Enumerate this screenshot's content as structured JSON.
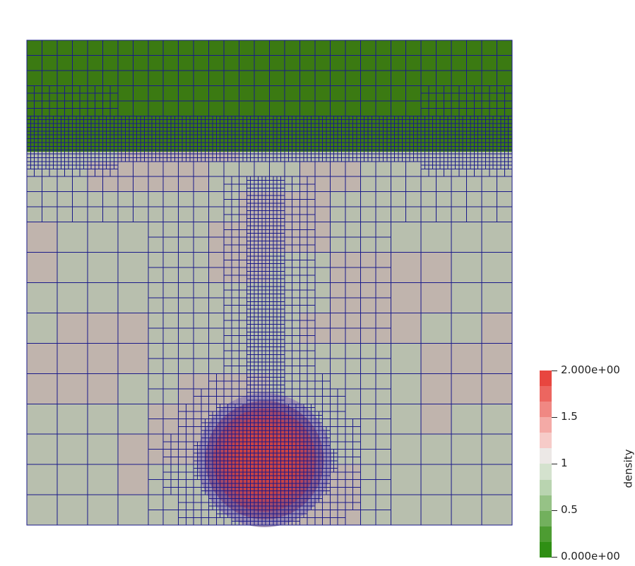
{
  "colorbar": {
    "title": "density",
    "labels": [
      "2.000e+00",
      "1.5",
      "1",
      "0.5",
      "0.000e+00"
    ],
    "colors": [
      "#e8463f",
      "#ec6660",
      "#f08883",
      "#f4aaa6",
      "#f6cbc8",
      "#ece8e6",
      "#d4e2ce",
      "#b9d4b0",
      "#96c286",
      "#72b05d",
      "#4d9c32",
      "#2f8f14"
    ]
  },
  "palette": {
    "low_density_green": "#3b7a12",
    "ambient_gray_green": "#b8bfae",
    "ambient_pink_gray": "#c0b4ad",
    "bubble_red": "#cc4444",
    "mesh_line_navy": "#1a1a8a"
  }
}
